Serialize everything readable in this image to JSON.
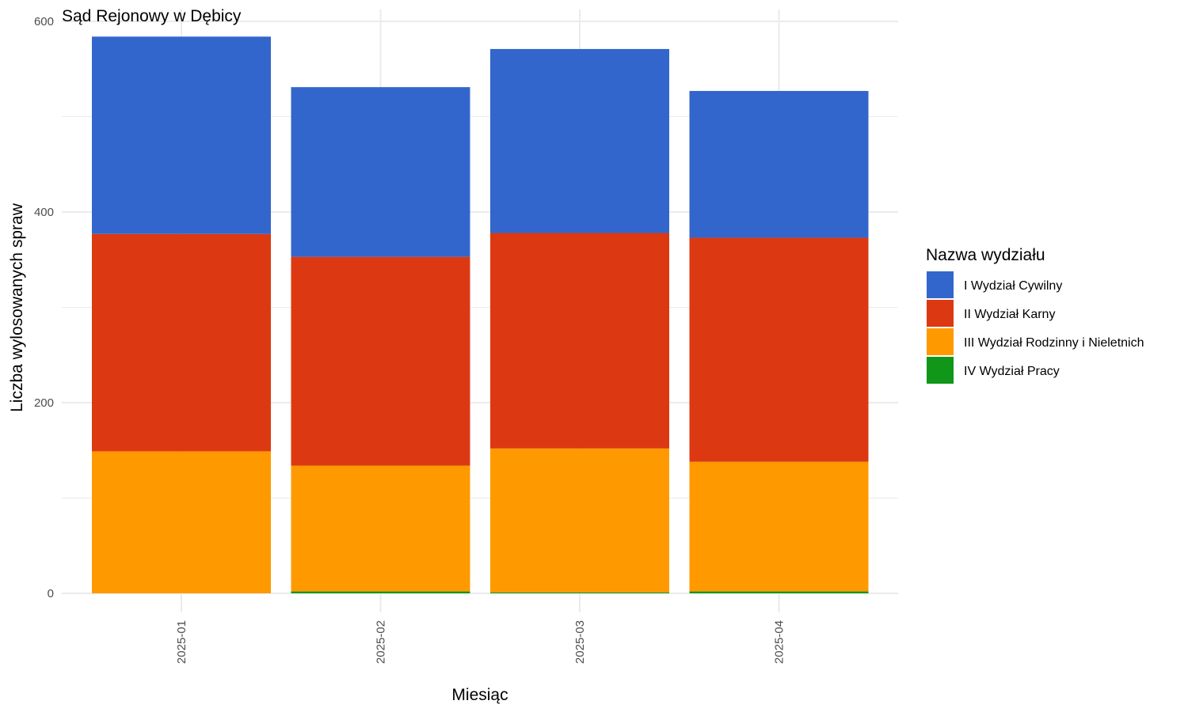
{
  "chart_data": {
    "type": "bar",
    "stacked": true,
    "title": "Sąd Rejonowy w Dębicy",
    "xlabel": "Miesiąc",
    "ylabel": "Liczba wylosowanych spraw",
    "ylim": [
      0,
      600
    ],
    "yticks": [
      0,
      200,
      400,
      600
    ],
    "grid": true,
    "legend_title": "Nazwa wydziału",
    "legend_position": "right",
    "categories": [
      "2025-01",
      "2025-02",
      "2025-03",
      "2025-04"
    ],
    "series": [
      {
        "name": "IV Wydział Pracy",
        "color": "#109618",
        "values": [
          0,
          2,
          1,
          2
        ]
      },
      {
        "name": "III Wydział Rodzinny i Nieletnich",
        "color": "#FF9900",
        "values": [
          149,
          132,
          151,
          136
        ]
      },
      {
        "name": "II Wydział Karny",
        "color": "#DC3912",
        "values": [
          228,
          219,
          226,
          235
        ]
      },
      {
        "name": "I Wydział Cywilny",
        "color": "#3366CC",
        "values": [
          207,
          178,
          193,
          154
        ]
      }
    ],
    "legend_order": [
      "I Wydział Cywilny",
      "II Wydział Karny",
      "III Wydział Rodzinny i Nieletnich",
      "IV Wydział Pracy"
    ]
  }
}
